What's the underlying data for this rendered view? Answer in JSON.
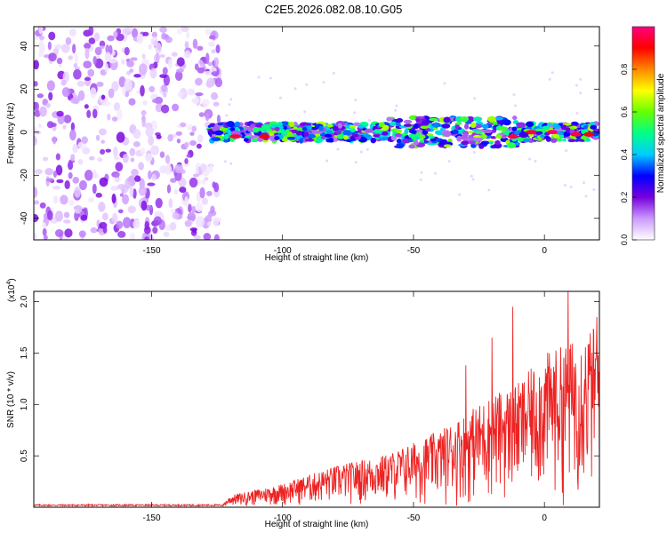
{
  "title": "C2E5.2026.082.08.10.G05",
  "chart_data": [
    {
      "type": "heatmap",
      "name": "spectrogram",
      "xlabel": "Height of straight line (km)",
      "ylabel": "Frequency (Hz)",
      "xlim": [
        -195,
        21
      ],
      "ylim": [
        -50,
        49
      ],
      "xticks": [
        -150,
        -100,
        -50,
        0
      ],
      "xtick_labels": [
        "-150",
        "-100",
        "-50",
        "0"
      ],
      "yticks": [
        -40,
        -20,
        0,
        20,
        40
      ],
      "ytick_labels": [
        "-40",
        "-20",
        "0",
        "20",
        "40"
      ],
      "colorbar": {
        "label": "Normalized spectral amplitude",
        "range": [
          0,
          1
        ],
        "ticks": [
          0.0,
          0.2,
          0.4,
          0.6,
          0.8
        ],
        "tick_labels": [
          "0.0",
          "0.2",
          "0.4",
          "0.6",
          "0.8"
        ],
        "colors": [
          "#ffffff",
          "#cc99ff",
          "#7700dd",
          "#0000ff",
          "#00ccff",
          "#00ff88",
          "#66ff00",
          "#ffff00",
          "#ff8800",
          "#ff0000",
          "#ff0080"
        ]
      },
      "regions": [
        {
          "desc": "broadband noise",
          "x_range": [
            -195,
            -124
          ],
          "freq_range": [
            -50,
            49
          ],
          "amplitude_range": [
            0.02,
            0.2
          ]
        },
        {
          "desc": "signal band",
          "x_range": [
            -128,
            20
          ],
          "freq_center": 0,
          "freq_halfwidth": 4,
          "amplitude_range": [
            0.1,
            1.0
          ]
        }
      ],
      "hot_spots": [
        {
          "x": -118,
          "freq": -2,
          "amplitude": 0.95
        },
        {
          "x": -107,
          "freq": -2,
          "amplitude": 0.9
        },
        {
          "x": -12,
          "freq": -2,
          "amplitude": 0.95
        },
        {
          "x": -5,
          "freq": 0,
          "amplitude": 0.95
        },
        {
          "x": 3,
          "freq": 0,
          "amplitude": 0.98
        },
        {
          "x": 12,
          "freq": -1,
          "amplitude": 0.95
        },
        {
          "x": 17,
          "freq": -1,
          "amplitude": 0.9
        }
      ]
    },
    {
      "type": "line",
      "name": "snr",
      "xlabel": "Height of straight line (km)",
      "ylabel": "SNR (10 * v/v)",
      "y_multiplier_label": "(x10",
      "y_multiplier_exp": "4",
      "y_multiplier_close": ")",
      "xlim": [
        -195,
        21
      ],
      "ylim": [
        0,
        2.1
      ],
      "xticks": [
        -150,
        -100,
        -50,
        0
      ],
      "xtick_labels": [
        "-150",
        "-100",
        "-50",
        "0"
      ],
      "yticks": [
        0.5,
        1.0,
        1.5,
        2.0
      ],
      "ytick_labels": [
        "0.5",
        "1.0",
        "1.5",
        "2.0"
      ],
      "color": "#ee2222",
      "series": [
        {
          "name": "SNR",
          "envelope_x": [
            -195,
            -150,
            -123,
            -120,
            -100,
            -80,
            -60,
            -50,
            -40,
            -30,
            -20,
            -10,
            0,
            10,
            20
          ],
          "envelope_y": [
            0.02,
            0.02,
            0.02,
            0.1,
            0.2,
            0.35,
            0.45,
            0.55,
            0.65,
            0.8,
            0.95,
            1.05,
            1.3,
            1.4,
            1.55
          ],
          "peak_points": [
            {
              "x": 9,
              "y": 2.12
            },
            {
              "x": -12,
              "y": 1.95
            },
            {
              "x": -20,
              "y": 1.65
            },
            {
              "x": -30,
              "y": 1.38
            },
            {
              "x": 20,
              "y": 1.85
            }
          ]
        }
      ]
    }
  ]
}
